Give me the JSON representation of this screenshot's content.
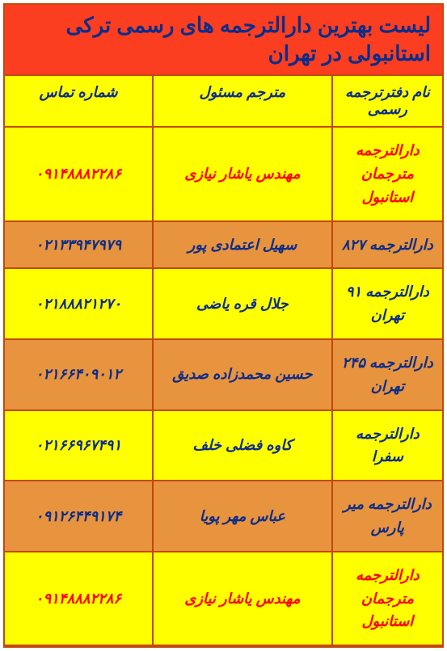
{
  "colors": {
    "border": "#c2480b",
    "title_bg": "#fb3e1f",
    "title_text": "#0b2d8a",
    "header_bg": "#ffff00",
    "header_text": "#0b2d8a",
    "row_alt1_bg": "#ffff00",
    "row_alt2_bg": "#e8933e",
    "cell_text": "#0b2d8a",
    "highlight_text": "#ff0000"
  },
  "title": "لیست بهترین دارالترجمه های رسمی ترکی استانبولی در تهران",
  "columns": {
    "name": "نام دفترترجمه رسمی",
    "translator": "مترجم مسئول",
    "phone": "شماره تماس"
  },
  "rows": [
    {
      "name": "دارالترجمه مترجمان استانبول",
      "translator": "مهندس یاشار نیازی",
      "phone": "۰۹۱۴۸۸۸۲۲۸۶",
      "highlight": true,
      "bg": "row_alt1_bg"
    },
    {
      "name": "دارالترجمه ۸۲۷",
      "translator": "سهیل اعتمادی پور",
      "phone": "۰۲۱۳۳۹۴۷۹۷۹",
      "highlight": false,
      "bg": "row_alt2_bg"
    },
    {
      "name": "دارالترجمه ۹۱ تهران",
      "translator": "جلال قره یاضی",
      "phone": "۰۲۱۸۸۸۲۱۲۷۰",
      "highlight": false,
      "bg": "row_alt1_bg"
    },
    {
      "name": "دارالترجمه ۲۴۵ تهران",
      "translator": "حسین محمدزاده صدیق",
      "phone": "۰۲۱۶۶۴۰۹۰۱۲",
      "highlight": false,
      "bg": "row_alt2_bg"
    },
    {
      "name": "دارالترجمه سفرا",
      "translator": "کاوه فضلی خلف",
      "phone": "۰۲۱۶۶۹۶۷۴۹۱",
      "highlight": false,
      "bg": "row_alt1_bg"
    },
    {
      "name": "دارالترجمه میر پارس",
      "translator": "عباس مهر پویا",
      "phone": "۰۹۱۲۶۴۴۹۱۷۴",
      "highlight": false,
      "bg": "row_alt2_bg"
    },
    {
      "name": "دارالترجمه مترجمان استانبول",
      "translator": "مهندس یاشار نیازی",
      "phone": "۰۹۱۴۸۸۸۲۲۸۶",
      "highlight": true,
      "bg": "row_alt1_bg"
    }
  ]
}
